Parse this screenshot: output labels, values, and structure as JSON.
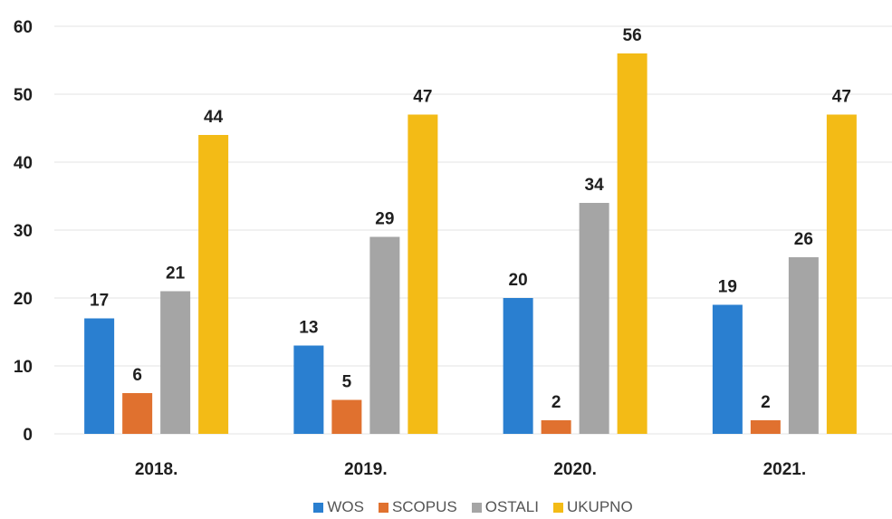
{
  "chart_data": {
    "type": "bar",
    "categories": [
      "2018.",
      "2019.",
      "2020.",
      "2021."
    ],
    "series": [
      {
        "name": "WOS",
        "values": [
          17,
          13,
          20,
          19
        ],
        "color": "#2a7fd0"
      },
      {
        "name": "SCOPUS",
        "values": [
          6,
          5,
          2,
          2
        ],
        "color": "#e0712f"
      },
      {
        "name": "OSTALI",
        "values": [
          21,
          29,
          34,
          26
        ],
        "color": "#a5a5a5"
      },
      {
        "name": "UKUPNO",
        "values": [
          44,
          47,
          56,
          47
        ],
        "color": "#f3bb16"
      }
    ],
    "ylim": [
      0,
      60
    ],
    "yticks": [
      0,
      10,
      20,
      30,
      40,
      50,
      60
    ],
    "grid": true,
    "legend_position": "bottom",
    "title": "",
    "xlabel": "",
    "ylabel": ""
  }
}
